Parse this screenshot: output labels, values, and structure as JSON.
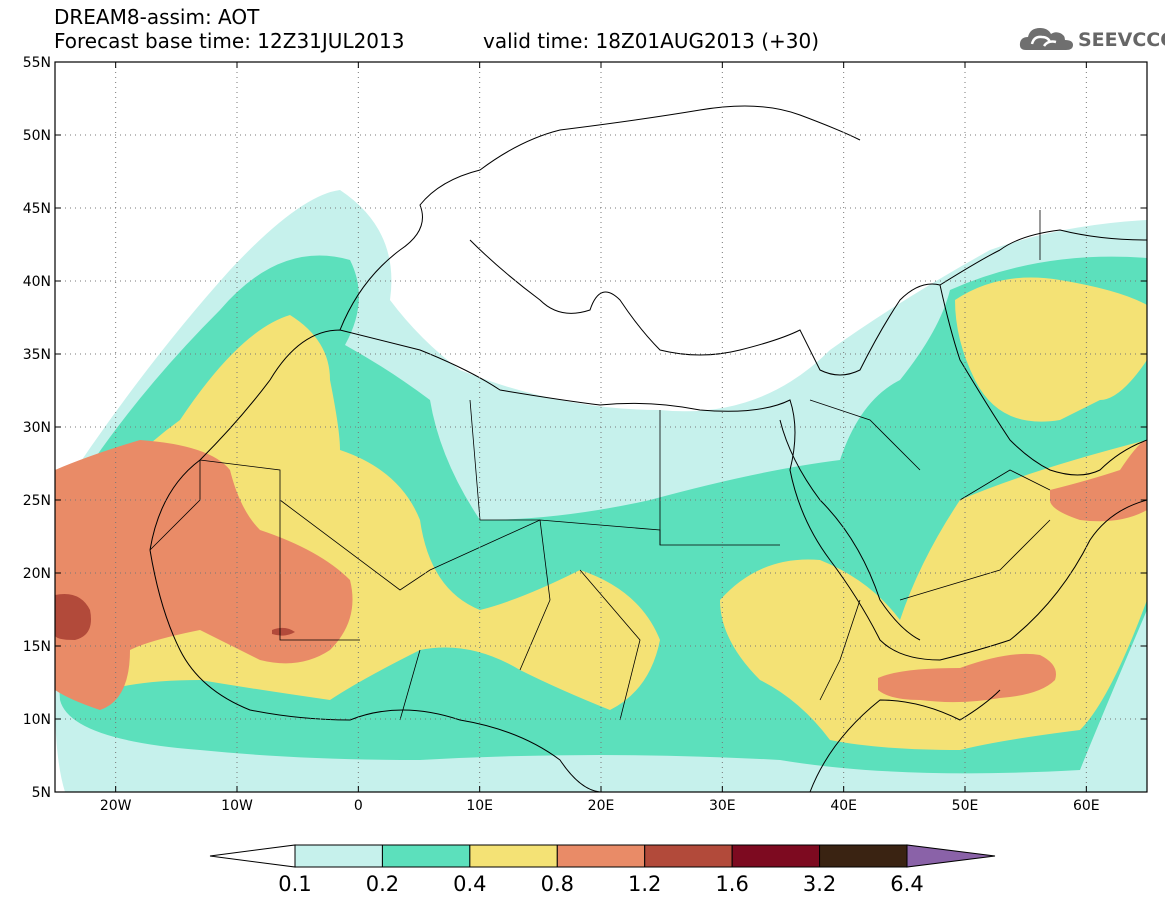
{
  "header": {
    "model": "DREAM8-assim: AOT",
    "base_time": "Forecast base time: 12Z31JUL2013",
    "valid_time": "valid time: 18Z01AUG2013 (+30)"
  },
  "logo": {
    "text": "SEEVCCC",
    "icon": "cloud-icon"
  },
  "map": {
    "lat_labels": [
      "55N",
      "50N",
      "45N",
      "40N",
      "35N",
      "30N",
      "25N",
      "20N",
      "15N",
      "10N",
      "5N"
    ],
    "lon_labels": [
      "20W",
      "10W",
      "0",
      "10E",
      "20E",
      "30E",
      "40E",
      "50E",
      "60E"
    ],
    "lat_values": [
      55,
      50,
      45,
      40,
      35,
      30,
      25,
      20,
      15,
      10,
      5
    ],
    "lon_values": [
      -20,
      -10,
      0,
      10,
      20,
      30,
      40,
      50,
      60
    ],
    "lon_range": [
      -25,
      65
    ],
    "lat_range": [
      5,
      55
    ],
    "gridlines": "dotted"
  },
  "colorbar": {
    "labels": [
      "0.1",
      "0.2",
      "0.4",
      "0.8",
      "1.2",
      "1.6",
      "3.2",
      "6.4"
    ],
    "colors": [
      "#c6f1ec",
      "#5ce0bc",
      "#f4e275",
      "#e98b67",
      "#b24a3a",
      "#7d0a20",
      "#3a2312"
    ],
    "under_color": "#ffffff",
    "over_color": "#8a62a8"
  }
}
